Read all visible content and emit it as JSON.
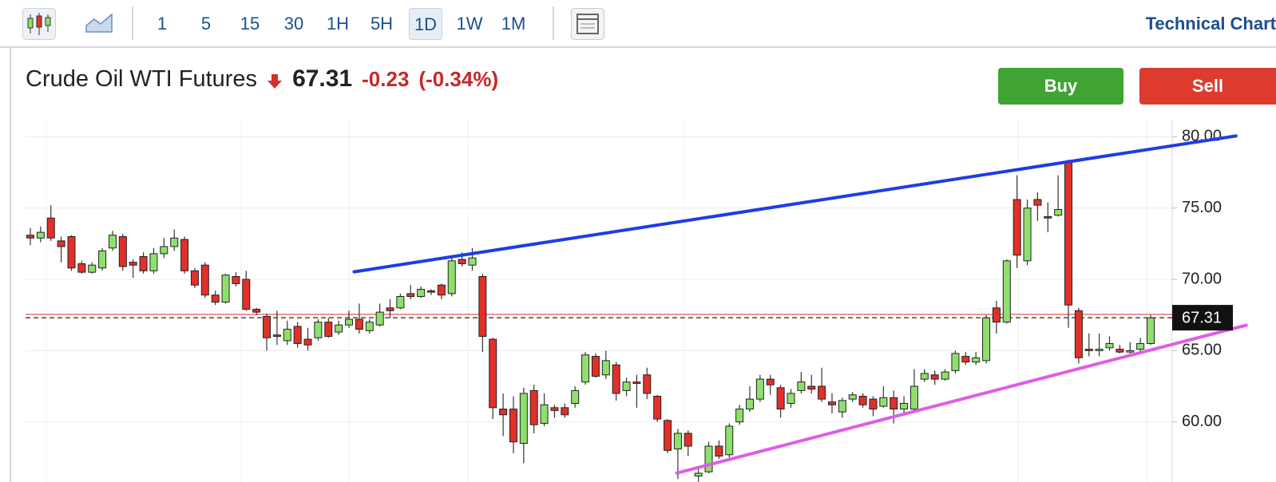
{
  "toolbar": {
    "intervals": [
      "1",
      "5",
      "15",
      "30",
      "1H",
      "5H",
      "1D",
      "1W",
      "1M"
    ],
    "active_interval": 6,
    "link": "Technical Chart"
  },
  "header": {
    "instrument": "Crude Oil WTI Futures",
    "price": 67.31,
    "change": "-0.23",
    "change_percent": "(-0.34%)",
    "buy": "Buy",
    "sell": "Sell"
  },
  "chart_data": {
    "type": "candlestick",
    "up_color": "#8fe06b",
    "down_color": "#e1302a",
    "ylim": [
      56.4,
      81.2
    ],
    "yticks": [
      {
        "value": 60,
        "label": "60.00"
      },
      {
        "value": 65,
        "label": "65.00"
      },
      {
        "value": 70,
        "label": "70.00"
      },
      {
        "value": 75,
        "label": "75.00"
      },
      {
        "value": 80,
        "label": "80.00"
      }
    ],
    "grid": true,
    "open": [
      73.1,
      72.9,
      74.3,
      72.7,
      73.0,
      71.1,
      70.5,
      70.8,
      72.2,
      73.0,
      71.2,
      71.6,
      70.6,
      71.8,
      72.3,
      72.8,
      70.6,
      71.0,
      68.9,
      68.4,
      70.2,
      70.0,
      67.9,
      67.4,
      66.1,
      65.7,
      66.7,
      65.8,
      65.9,
      67.0,
      66.3,
      66.8,
      67.2,
      66.4,
      66.8,
      68.0,
      68.0,
      69.0,
      68.8,
      69.2,
      69.6,
      69.0,
      71.4,
      71.0,
      70.2,
      65.8,
      60.9,
      60.9,
      58.5,
      62.2,
      59.9,
      61.0,
      61.0,
      61.3,
      62.8,
      64.6,
      63.3,
      64.0,
      62.2,
      62.8,
      63.3,
      61.8,
      60.1,
      58.1,
      59.2,
      56.2,
      56.5,
      58.3,
      57.7,
      60.0,
      60.9,
      61.6,
      63.0,
      62.4,
      61.3,
      62.2,
      62.5,
      62.5,
      61.4,
      60.7,
      61.6,
      61.8,
      61.6,
      61.1,
      61.7,
      60.9,
      60.9,
      63.0,
      63.3,
      63.0,
      63.6,
      64.6,
      64.2,
      64.3,
      68.0,
      67.0,
      75.6,
      71.3,
      75.6,
      74.4,
      74.5,
      78.2,
      67.8,
      65.1,
      65.0,
      65.2,
      65.1,
      64.9,
      65.1,
      65.5
    ],
    "high": [
      73.6,
      73.7,
      75.2,
      73.0,
      73.1,
      71.3,
      71.2,
      72.2,
      73.4,
      73.2,
      71.4,
      71.9,
      72.2,
      72.9,
      73.5,
      73.0,
      70.8,
      71.2,
      69.2,
      70.4,
      70.5,
      70.6,
      68.0,
      67.6,
      67.8,
      67.1,
      67.0,
      66.6,
      67.2,
      67.3,
      67.1,
      67.8,
      68.3,
      67.2,
      68.3,
      68.6,
      69.0,
      69.6,
      69.5,
      69.3,
      69.7,
      71.6,
      71.9,
      72.2,
      70.4,
      65.9,
      62.0,
      61.8,
      62.4,
      62.6,
      62.0,
      61.2,
      61.3,
      62.5,
      64.9,
      64.8,
      65.0,
      64.2,
      63.1,
      63.3,
      63.8,
      61.9,
      60.2,
      59.5,
      59.4,
      56.7,
      58.6,
      58.7,
      59.9,
      61.2,
      62.5,
      63.3,
      63.3,
      62.6,
      62.3,
      63.5,
      63.3,
      63.8,
      62.0,
      61.7,
      62.1,
      62.0,
      61.8,
      62.5,
      62.2,
      61.8,
      63.7,
      63.7,
      63.6,
      63.7,
      65.0,
      64.9,
      64.9,
      67.5,
      68.5,
      71.4,
      77.3,
      75.6,
      76.1,
      75.4,
      77.3,
      78.4,
      68.0,
      66.2,
      66.2,
      66.0,
      65.4,
      65.6,
      65.9,
      67.5
    ],
    "low": [
      72.4,
      72.6,
      72.7,
      71.2,
      70.6,
      70.4,
      70.4,
      70.6,
      72.0,
      70.6,
      70.1,
      70.4,
      70.4,
      71.5,
      72.0,
      70.4,
      69.4,
      68.7,
      68.2,
      68.3,
      69.5,
      67.8,
      67.5,
      65.0,
      65.4,
      65.4,
      65.2,
      65.0,
      65.7,
      65.9,
      66.1,
      66.6,
      66.2,
      66.2,
      66.7,
      67.3,
      67.9,
      68.6,
      68.7,
      68.9,
      68.6,
      68.8,
      70.9,
      70.6,
      64.9,
      60.2,
      59.0,
      57.8,
      57.1,
      59.2,
      59.7,
      60.3,
      60.3,
      61.0,
      62.6,
      63.1,
      63.0,
      61.5,
      61.8,
      61.0,
      61.6,
      60.0,
      57.8,
      56.0,
      57.6,
      55.8,
      56.4,
      57.4,
      57.5,
      59.8,
      60.7,
      61.4,
      61.9,
      60.3,
      61.0,
      62.0,
      62.0,
      61.4,
      60.6,
      60.3,
      61.4,
      61.0,
      60.4,
      61.0,
      59.9,
      60.6,
      60.7,
      62.8,
      62.6,
      62.9,
      63.4,
      64.0,
      64.0,
      64.1,
      66.2,
      66.9,
      70.8,
      71.0,
      74.1,
      73.3,
      74.4,
      66.6,
      64.1,
      64.6,
      64.6,
      65.0,
      64.8,
      64.8,
      64.9,
      65.4
    ],
    "close": [
      72.9,
      73.3,
      72.9,
      72.3,
      70.8,
      70.5,
      71.0,
      72.0,
      73.1,
      70.9,
      71.0,
      70.6,
      71.8,
      72.3,
      72.9,
      70.6,
      69.6,
      68.9,
      68.4,
      70.3,
      69.7,
      67.9,
      67.7,
      65.9,
      66.0,
      66.5,
      65.5,
      65.4,
      67.0,
      66.0,
      66.8,
      67.2,
      66.5,
      67.0,
      67.7,
      67.8,
      68.8,
      68.8,
      69.3,
      69.1,
      68.9,
      71.3,
      71.1,
      71.5,
      66.0,
      61.0,
      60.5,
      58.6,
      62.0,
      59.8,
      61.2,
      60.8,
      60.5,
      62.2,
      64.7,
      63.2,
      64.3,
      62.0,
      62.8,
      62.7,
      62.0,
      60.2,
      58.0,
      59.2,
      58.3,
      56.4,
      58.3,
      57.6,
      59.7,
      60.9,
      61.6,
      63.0,
      62.6,
      60.9,
      62.0,
      62.8,
      62.3,
      61.6,
      61.2,
      61.5,
      61.9,
      61.2,
      60.9,
      61.7,
      60.9,
      61.3,
      62.5,
      63.4,
      63.0,
      63.5,
      64.8,
      64.2,
      64.5,
      67.3,
      67.0,
      71.3,
      71.7,
      75.0,
      75.2,
      74.3,
      74.9,
      68.2,
      64.5,
      65.0,
      65.1,
      65.5,
      64.9,
      65.0,
      65.5,
      67.3
    ],
    "reference_line": {
      "value": 67.54,
      "color": "#e57373"
    },
    "trendlines": [
      {
        "color": "#1f3ce6",
        "x": [
          31.5,
          117.3
        ],
        "y": [
          70.53,
          80.06
        ]
      },
      {
        "color": "#e05ce6",
        "x": [
          62.9,
          118.3
        ],
        "y": [
          56.41,
          66.78
        ]
      }
    ]
  }
}
